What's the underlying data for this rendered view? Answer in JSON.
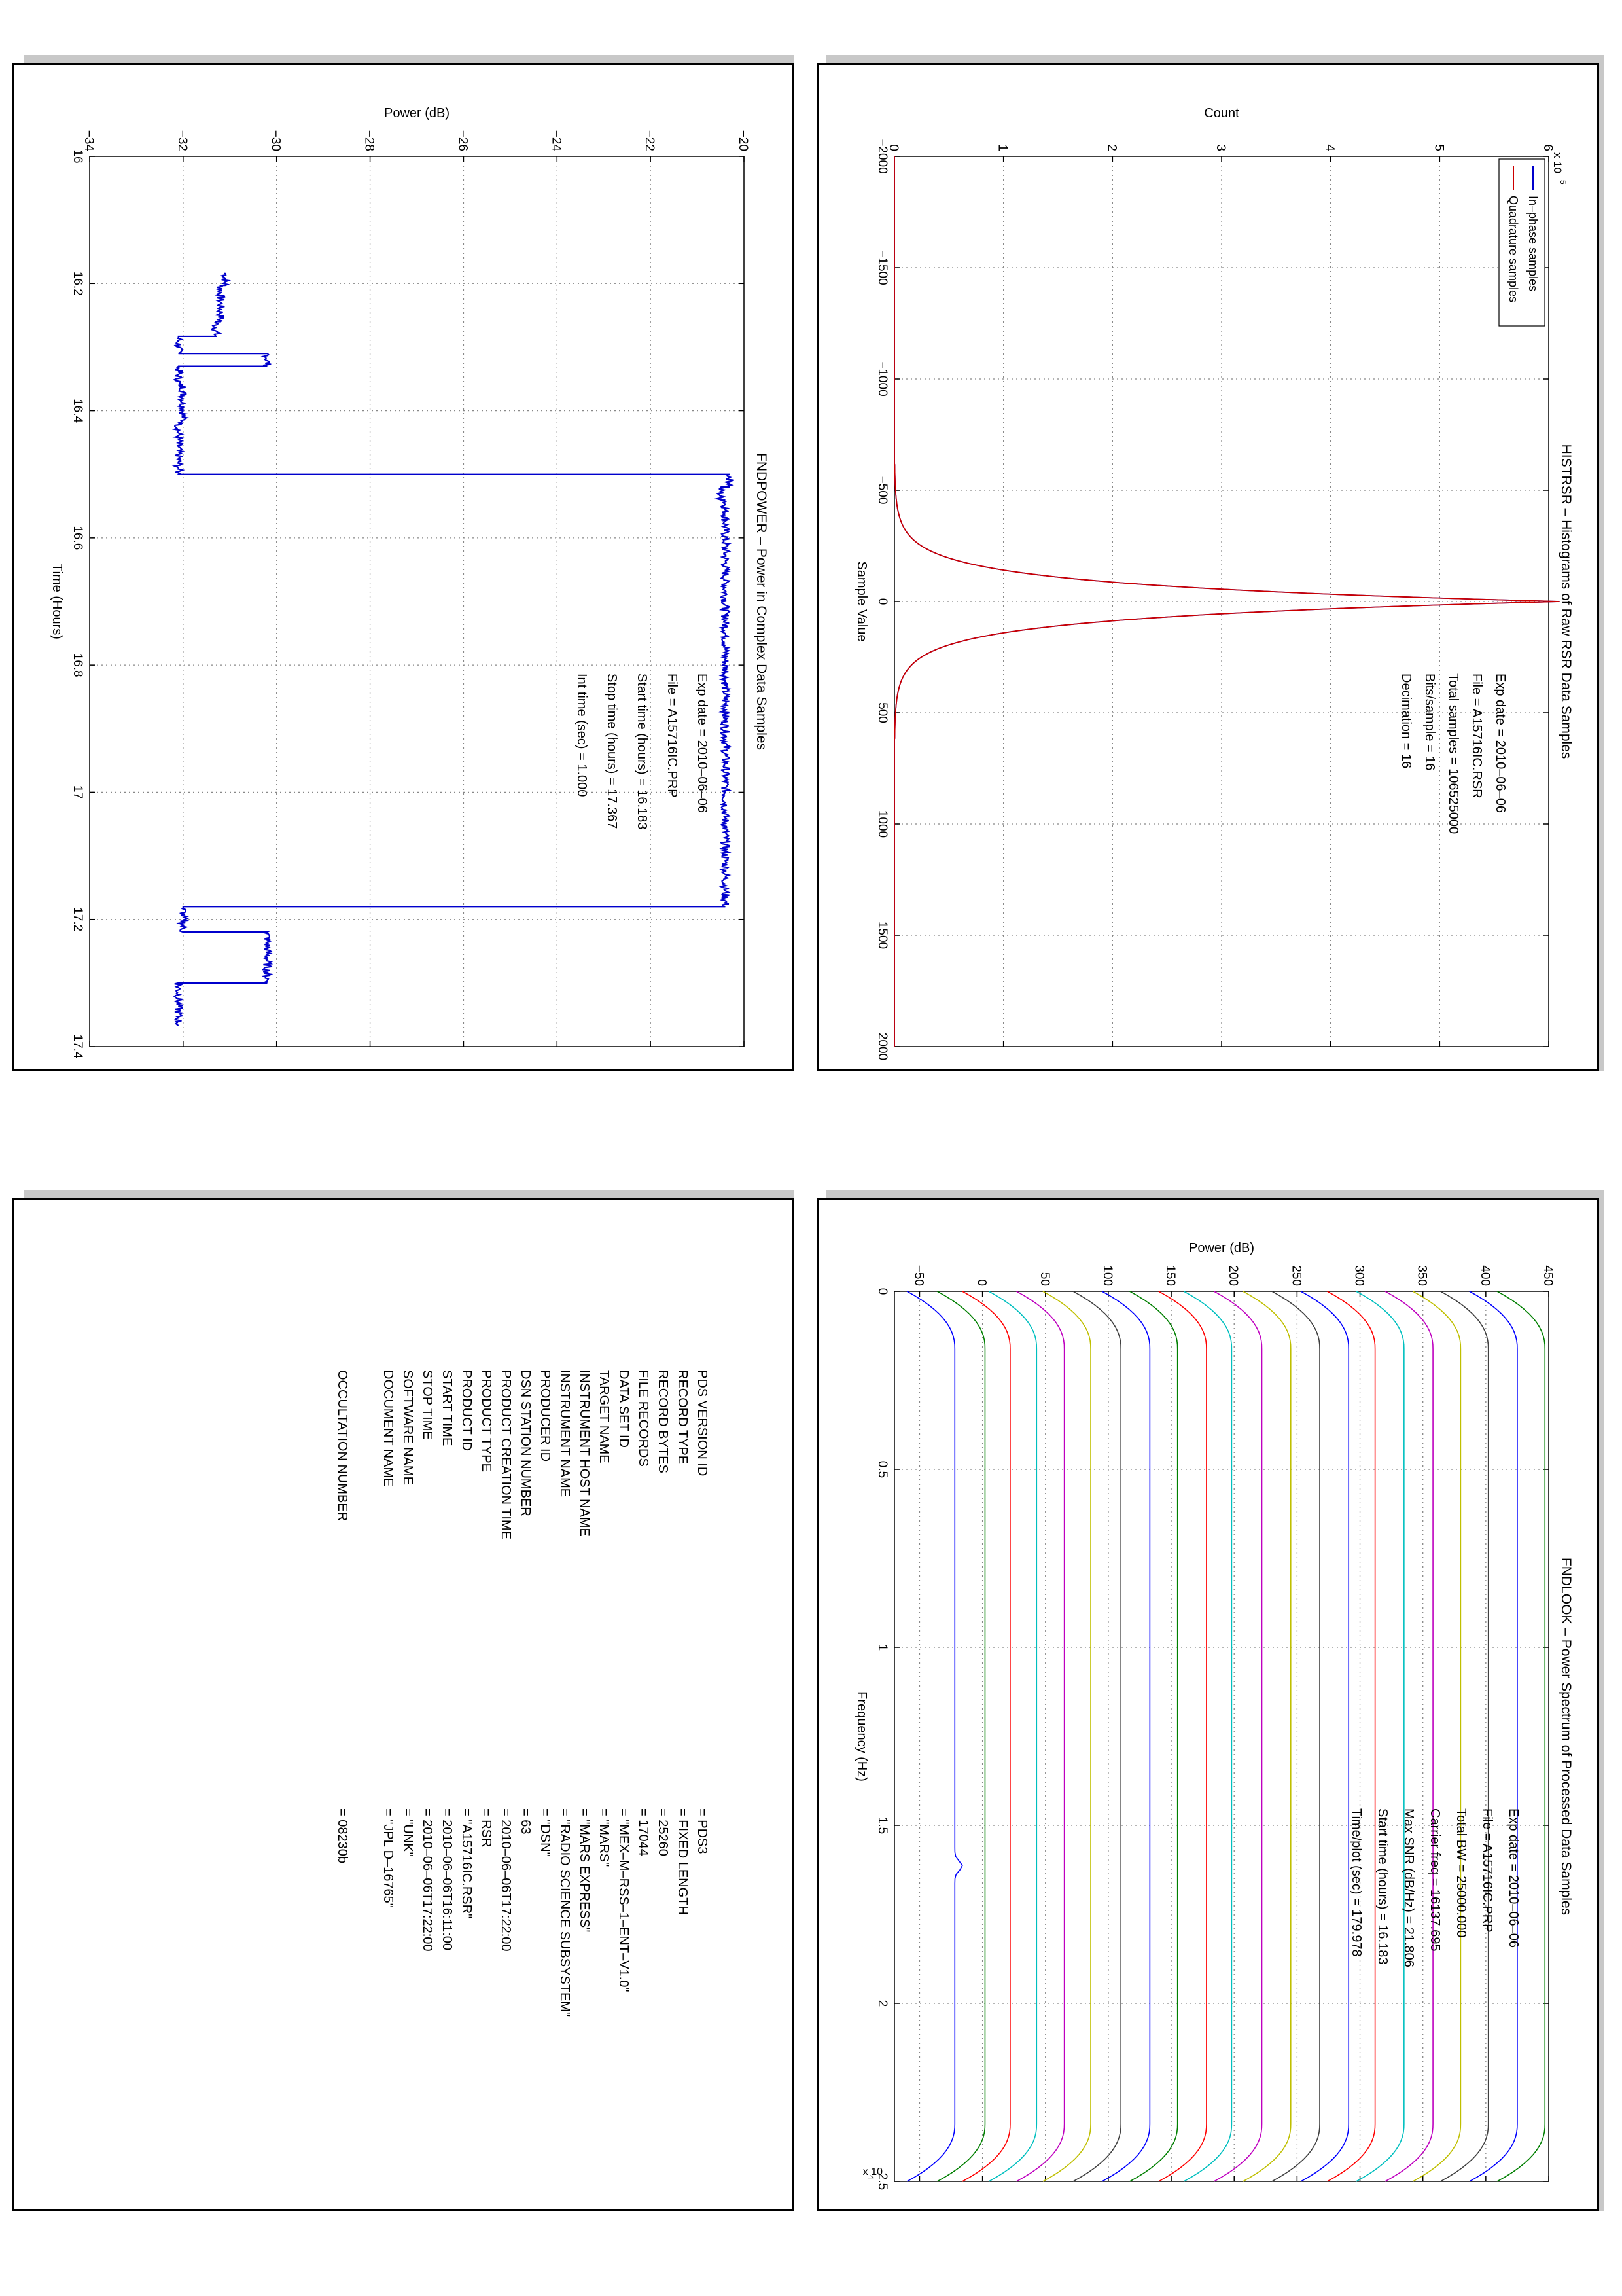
{
  "panels": {
    "histrsr": {
      "title": "HISTRSR – Histograms of Raw RSR Data Samples",
      "info": [
        {
          "label": "Exp date = 2010–06–06"
        },
        {
          "label": "File = A15716IC.RSR"
        },
        {
          "label": "Total samples =   106525000"
        },
        {
          "label": "Bits/sample    =       16"
        },
        {
          "label": "Decimation     =       16"
        }
      ]
    },
    "fndpower": {
      "title": "FNDPOWER – Power in Complex Data Samples",
      "info": [
        {
          "label": "Exp date = 2010–06–06"
        },
        {
          "label": "File = A15716IC.PRP"
        },
        {
          "label": "Start time (hours) = 16.183"
        },
        {
          "label": "Stop time (hours)  = 17.367"
        },
        {
          "label": "Int time (sec) =      1.000"
        }
      ]
    },
    "fndlook": {
      "title": "FNDLOOK – Power Spectrum of Processed Data Samples",
      "info": [
        {
          "label": "Exp date = 2010–06–06"
        },
        {
          "label": "File = A15716IC.PRP"
        },
        {
          "label": "Total BW =      25000.000"
        },
        {
          "label": "Carrier freq =   16137.695"
        },
        {
          "label": "Max SNR (dB/Hz) =     21.806"
        },
        {
          "label": "Start time (hours) =  16.183"
        },
        {
          "label": "Time/plot (sec) =    179.978"
        }
      ]
    },
    "label": {
      "rows": [
        {
          "key": "PDS VERSION ID",
          "value": "=  PDS3"
        },
        {
          "key": "RECORD TYPE",
          "value": "=  FIXED LENGTH"
        },
        {
          "key": "RECORD BYTES",
          "value": "=  25260"
        },
        {
          "key": "FILE RECORDS",
          "value": "=  17044"
        },
        {
          "key": "DATA SET ID",
          "value": "=  \"MEX–M–RSS–1–ENT–V1.0\""
        },
        {
          "key": "TARGET NAME",
          "value": "=  \"MARS\""
        },
        {
          "key": "INSTRUMENT HOST NAME",
          "value": "=  \"MARS EXPRESS\""
        },
        {
          "key": "INSTRUMENT NAME",
          "value": "=  \"RADIO SCIENCE SUBSYSTEM\""
        },
        {
          "key": "PRODUCER ID",
          "value": "=  \"DSN\""
        },
        {
          "key": "DSN STATION NUMBER",
          "value": "=  63"
        },
        {
          "key": "PRODUCT CREATION TIME",
          "value": "=  2010–06–06T17:22:00"
        },
        {
          "key": "PRODUCT TYPE",
          "value": "=  RSR"
        },
        {
          "key": "PRODUCT ID",
          "value": "=  \"A15716IC.RSR\""
        },
        {
          "key": "START TIME",
          "value": "=  2010–06–06T16:11:00"
        },
        {
          "key": "STOP TIME",
          "value": "=  2010–06–06T17:22:00"
        },
        {
          "key": "SOFTWARE NAME",
          "value": "=  \"UNK\""
        },
        {
          "key": "DOCUMENT NAME",
          "value": "=  \"JPL D–16765\""
        },
        {
          "key": "OCCULTATION NUMBER",
          "value": "=  08230b"
        }
      ]
    }
  },
  "chart_data": [
    {
      "id": "histrsr",
      "type": "line",
      "title": "HISTRSR – Histograms of Raw RSR Data Samples",
      "xlabel": "Sample Value",
      "ylabel": "Count",
      "y_multiplier": "x 10",
      "y_exponent": "5",
      "xlim": [
        -2000,
        2000
      ],
      "ylim": [
        0,
        6
      ],
      "xticks": [
        -2000,
        -1500,
        -1000,
        -500,
        0,
        500,
        1000,
        1500,
        2000
      ],
      "yticks": [
        0,
        1,
        2,
        3,
        4,
        5,
        6
      ],
      "grid": true,
      "legend_position": "top-left",
      "series": [
        {
          "name": "In–phase samples",
          "color": "#0000cc",
          "x": [
            -2000,
            -600,
            -500,
            -400,
            -300,
            -200,
            -150,
            -100,
            -60,
            -30,
            -10,
            0,
            10,
            30,
            60,
            100,
            150,
            200,
            300,
            400,
            500,
            600,
            2000
          ],
          "y": [
            0,
            0,
            0.03,
            0.1,
            0.28,
            0.7,
            1.15,
            1.95,
            3.0,
            4.3,
            5.4,
            6.1,
            5.4,
            4.3,
            3.0,
            1.95,
            1.15,
            0.7,
            0.28,
            0.1,
            0.03,
            0,
            0
          ]
        },
        {
          "name": "Quadrature samples",
          "color": "#cc0000",
          "x": [
            -2000,
            -600,
            -500,
            -400,
            -300,
            -200,
            -150,
            -100,
            -60,
            -30,
            -10,
            0,
            10,
            30,
            60,
            100,
            150,
            200,
            300,
            400,
            500,
            600,
            2000
          ],
          "y": [
            0,
            0,
            0.03,
            0.1,
            0.28,
            0.7,
            1.15,
            1.95,
            3.0,
            4.3,
            5.4,
            6.1,
            5.4,
            4.3,
            3.0,
            1.95,
            1.15,
            0.7,
            0.28,
            0.1,
            0.03,
            0,
            0
          ]
        }
      ]
    },
    {
      "id": "fndpower",
      "type": "line",
      "title": "FNDPOWER – Power in Complex Data Samples",
      "xlabel": "Time (Hours)",
      "ylabel": "Power (dB)",
      "xlim": [
        16.0,
        17.4
      ],
      "ylim": [
        -34,
        -20
      ],
      "xticks": [
        16,
        16.2,
        16.4,
        16.6,
        16.8,
        17,
        17.2,
        17.4
      ],
      "yticks": [
        -34,
        -32,
        -30,
        -28,
        -26,
        -24,
        -22,
        -20
      ],
      "grid": true,
      "series": [
        {
          "name": "",
          "color": "#0000cc",
          "x": [
            16.183,
            16.203,
            16.203,
            16.26,
            16.26,
            16.283,
            16.283,
            16.31,
            16.31,
            16.33,
            16.33,
            16.36,
            16.36,
            16.42,
            16.42,
            16.49,
            16.49,
            16.5,
            16.5,
            16.52,
            16.52,
            16.54,
            16.54,
            17.18,
            17.18,
            17.22,
            17.22,
            17.3,
            17.3,
            17.367
          ],
          "y": [
            -31.1,
            -31.1,
            -31.2,
            -31.2,
            -31.3,
            -31.3,
            -32.1,
            -32.1,
            -30.2,
            -30.2,
            -32.1,
            -32.1,
            -32.0,
            -32.0,
            -32.1,
            -32.1,
            -32.1,
            -32.1,
            -20.3,
            -20.3,
            -20.5,
            -20.5,
            -20.4,
            -20.4,
            -32.0,
            -32.0,
            -30.2,
            -30.2,
            -32.1,
            -32.1
          ]
        }
      ]
    },
    {
      "id": "fndlook",
      "type": "line",
      "title": "FNDLOOK – Power Spectrum of Processed Data Samples",
      "xlabel": "Frequency (Hz)",
      "ylabel": "Power (dB)",
      "x_multiplier": "x 10",
      "x_exponent": "4",
      "xlim": [
        0,
        25000
      ],
      "ylim": [
        -70,
        450
      ],
      "xticks": [
        0,
        5000,
        10000,
        15000,
        20000,
        25000
      ],
      "xticklabels": [
        "0",
        "0.5",
        "1",
        "1.5",
        "2",
        "2.5"
      ],
      "yticks": [
        -50,
        0,
        50,
        100,
        150,
        200,
        250,
        300,
        350,
        400,
        450
      ],
      "grid": true,
      "series": [
        {
          "name": "",
          "color": "#0000ff",
          "offset": -62
        },
        {
          "name": "",
          "color": "#007f00",
          "offset": -38
        },
        {
          "name": "",
          "color": "#ff0000",
          "offset": -18
        },
        {
          "name": "",
          "color": "#00bfbf",
          "offset": 3
        },
        {
          "name": "",
          "color": "#bf00bf",
          "offset": 25
        },
        {
          "name": "",
          "color": "#bfbf00",
          "offset": 46
        },
        {
          "name": "",
          "color": "#404040",
          "offset": 70
        },
        {
          "name": "",
          "color": "#0000ff",
          "offset": 93
        },
        {
          "name": "",
          "color": "#007f00",
          "offset": 115
        },
        {
          "name": "",
          "color": "#ff0000",
          "offset": 138
        },
        {
          "name": "",
          "color": "#00bfbf",
          "offset": 158
        },
        {
          "name": "",
          "color": "#bf00bf",
          "offset": 182
        },
        {
          "name": "",
          "color": "#bfbf00",
          "offset": 205
        },
        {
          "name": "",
          "color": "#404040",
          "offset": 228
        },
        {
          "name": "",
          "color": "#0000ff",
          "offset": 251
        },
        {
          "name": "",
          "color": "#ff0000",
          "offset": 272
        },
        {
          "name": "",
          "color": "#00bfbf",
          "offset": 295
        },
        {
          "name": "",
          "color": "#bf00bf",
          "offset": 318
        },
        {
          "name": "",
          "color": "#bfbf00",
          "offset": 340
        },
        {
          "name": "",
          "color": "#404040",
          "offset": 362
        },
        {
          "name": "",
          "color": "#0000ff",
          "offset": 385
        },
        {
          "name": "",
          "color": "#007f00",
          "offset": 407
        }
      ]
    }
  ]
}
